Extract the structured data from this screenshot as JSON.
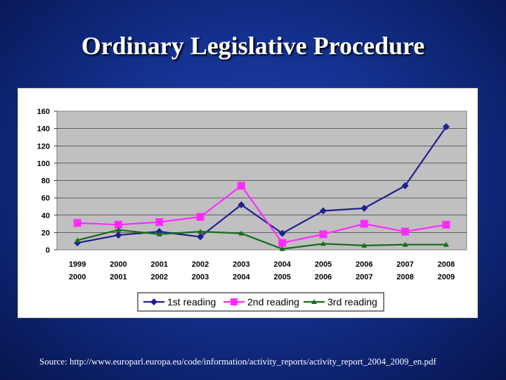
{
  "slide": {
    "title": "Ordinary Legislative Procedure",
    "source": "Source: http://www.europarl.europa.eu/code/information/activity_reports/activity_report_2004_2009_en.pdf"
  },
  "chart_data": {
    "type": "line",
    "title": "",
    "xlabel": "",
    "ylabel": "",
    "ylim": [
      0,
      160
    ],
    "yticks": [
      0,
      20,
      40,
      60,
      80,
      100,
      120,
      140,
      160
    ],
    "grid": true,
    "legend": "bottom",
    "categories": [
      [
        "1999",
        "2000"
      ],
      [
        "2000",
        "2001"
      ],
      [
        "2001",
        "2002"
      ],
      [
        "2002",
        "2003"
      ],
      [
        "2003",
        "2004"
      ],
      [
        "2004",
        "2005"
      ],
      [
        "2005",
        "2006"
      ],
      [
        "2006",
        "2007"
      ],
      [
        "2007",
        "2008"
      ],
      [
        "2008",
        "2009"
      ]
    ],
    "series": [
      {
        "name": "1st reading",
        "color": "#1f1f8f",
        "marker": "diamond",
        "values": [
          8,
          17,
          21,
          15,
          52,
          19,
          45,
          48,
          74,
          142
        ]
      },
      {
        "name": "2nd reading",
        "color": "#ff2bff",
        "marker": "square",
        "values": [
          31,
          29,
          32,
          38,
          74,
          8,
          18,
          30,
          21,
          29
        ]
      },
      {
        "name": "3rd reading",
        "color": "#1a6b1a",
        "marker": "triangle",
        "values": [
          11,
          23,
          18,
          21,
          19,
          1,
          7,
          5,
          6,
          6
        ]
      }
    ]
  }
}
